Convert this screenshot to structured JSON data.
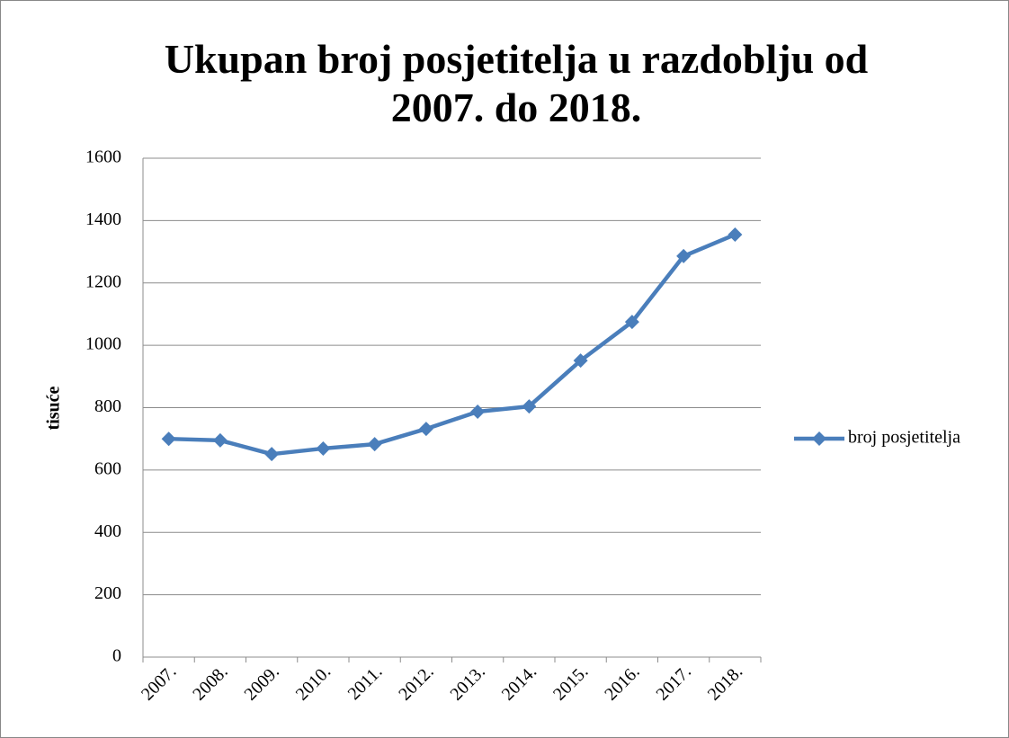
{
  "chart_data": {
    "type": "line",
    "title": "Ukupan broj posjetitelja u razdoblju od 2007. do 2018.",
    "y_label": "tisuće",
    "categories": [
      "2007.",
      "2008.",
      "2009.",
      "2010.",
      "2011.",
      "2012.",
      "2013.",
      "2014.",
      "2015.",
      "2016.",
      "2017.",
      "2018."
    ],
    "series": [
      {
        "name": "broj posjetitelja",
        "color": "#4a7ebb",
        "values": [
          700,
          695,
          651,
          669,
          683,
          732,
          787,
          804,
          951,
          1075,
          1286,
          1355
        ]
      }
    ],
    "ylim": [
      0,
      1600
    ],
    "yticks": [
      0,
      200,
      400,
      600,
      800,
      1000,
      1200,
      1400,
      1600
    ],
    "grid": true,
    "legend": "right"
  }
}
